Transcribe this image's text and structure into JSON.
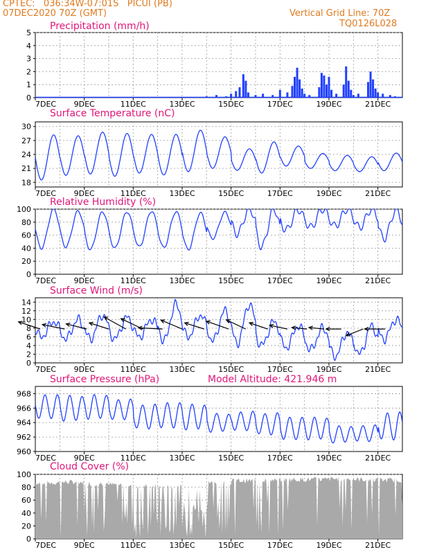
{
  "header": {
    "line1": "CPTEC:   036:34W-07:01S   PICUI (PB)",
    "line2": "07DEC2020 70Z (GMT)",
    "grid_note": "Vertical Grid Line: 70Z",
    "code": "TQ0126L028",
    "altitude": "Model Altitude: 421.946 m"
  },
  "colors": {
    "header": "#e07a1f",
    "title": "#e0167a",
    "series": "#2040ff",
    "cloud": "#a9a9a9",
    "arrow": "#000000"
  },
  "chart_data": [
    {
      "type": "bar",
      "title": "Precipitation (mm/h)",
      "x_ticks": [
        "7DEC",
        "9DEC",
        "11DEC",
        "13DEC",
        "15DEC",
        "17DEC",
        "19DEC",
        "21DEC"
      ],
      "ylim": [
        0,
        5
      ],
      "y_ticks": [
        0,
        1,
        2,
        3,
        4,
        5
      ],
      "grid": true,
      "x_days": [
        14.0,
        14.4,
        14.8,
        15.0,
        15.2,
        15.35,
        15.5,
        15.6,
        15.7,
        16.0,
        16.3,
        16.7,
        17.0,
        17.3,
        17.5,
        17.6,
        17.7,
        17.8,
        17.9,
        18.0,
        18.2,
        18.6,
        18.7,
        18.8,
        18.9,
        19.0,
        19.1,
        19.3,
        19.6,
        19.7,
        19.8,
        19.9,
        20.0,
        20.2,
        20.6,
        20.7,
        20.8,
        20.9,
        21.0,
        21.2,
        21.5,
        21.7
      ],
      "values": [
        0.1,
        0.2,
        0.1,
        0.3,
        0.5,
        0.8,
        1.8,
        1.3,
        0.4,
        0.2,
        0.3,
        0.2,
        0.6,
        0.4,
        0.9,
        1.6,
        2.3,
        1.4,
        0.7,
        0.3,
        0.2,
        0.8,
        1.9,
        1.7,
        1.0,
        1.6,
        0.6,
        0.3,
        1.0,
        2.4,
        1.3,
        0.6,
        0.2,
        0.3,
        1.2,
        2.0,
        1.4,
        0.7,
        0.4,
        0.3,
        0.2,
        0.1
      ]
    },
    {
      "type": "line",
      "title": "Surface Temperature (nC)",
      "x_ticks": [
        "7DEC",
        "9DEC",
        "11DEC",
        "13DEC",
        "15DEC",
        "17DEC",
        "19DEC",
        "21DEC"
      ],
      "ylim": [
        17,
        31
      ],
      "y_ticks": [
        18,
        21,
        24,
        27,
        30
      ],
      "grid": true,
      "daily_max": [
        28.2,
        28.0,
        28.8,
        28.5,
        28.3,
        28.3,
        29.2,
        27.8,
        25.2,
        26.7,
        25.8,
        24.2,
        23.8,
        23.5,
        24.3
      ],
      "daily_min": [
        18.5,
        19.5,
        19.8,
        19.3,
        20.0,
        19.6,
        20.3,
        21.0,
        20.6,
        20.0,
        21.5,
        21.0,
        20.5,
        20.3,
        20.5
      ]
    },
    {
      "type": "line",
      "title": "Relative Humidity (%)",
      "x_ticks": [
        "7DEC",
        "9DEC",
        "11DEC",
        "13DEC",
        "15DEC",
        "17DEC",
        "19DEC",
        "21DEC"
      ],
      "ylim": [
        0,
        100
      ],
      "y_ticks": [
        0,
        20,
        40,
        60,
        80,
        100
      ],
      "grid": true,
      "daily_max": [
        100,
        97,
        96,
        96,
        97,
        96,
        94,
        95,
        100,
        100,
        99,
        100,
        100,
        100,
        99
      ],
      "daily_min": [
        40,
        42,
        38,
        40,
        42,
        41,
        38,
        55,
        62,
        42,
        68,
        72,
        74,
        72,
        55
      ]
    },
    {
      "type": "line",
      "title": "Surface Wind (m/s)",
      "x_ticks": [
        "7DEC",
        "9DEC",
        "11DEC",
        "13DEC",
        "15DEC",
        "17DEC",
        "19DEC",
        "21DEC"
      ],
      "ylim": [
        0,
        15
      ],
      "y_ticks": [
        0,
        2,
        4,
        6,
        8,
        10,
        12,
        14
      ],
      "grid": true,
      "daily_max": [
        9.5,
        10.0,
        11.0,
        10.5,
        10.0,
        13.5,
        11.0,
        12.0,
        13.5,
        9.5,
        8.5,
        8.0,
        7.0,
        8.5,
        10.0
      ],
      "daily_min": [
        6.0,
        5.5,
        5.5,
        5.5,
        6.0,
        5.0,
        6.0,
        5.0,
        4.5,
        4.0,
        3.5,
        3.0,
        1.5,
        2.0,
        5.5
      ],
      "arrow_days": [
        7.2,
        8.2,
        9.1,
        10.0,
        10.7,
        11.4,
        12.2,
        13.0,
        13.9,
        14.9,
        15.6,
        16.5,
        17.3,
        18.1,
        18.8,
        19.5,
        20.4,
        21.3
      ],
      "arrow_u": [
        0.9,
        1.0,
        1.0,
        0.95,
        0.9,
        0.85,
        1.0,
        0.95,
        0.95,
        1.0,
        0.95,
        0.9,
        0.95,
        1.0,
        1.0,
        1.0,
        0.9,
        1.0
      ],
      "arrow_v": [
        0.3,
        0.2,
        0.25,
        0.3,
        0.5,
        0.4,
        0.05,
        0.4,
        0.3,
        0.35,
        0.45,
        0.3,
        0.2,
        0.1,
        0.1,
        0.0,
        -0.35,
        0.0
      ],
      "arrow_speed": [
        8,
        7,
        6,
        6,
        8,
        9,
        8,
        7,
        6,
        7,
        6,
        6,
        5,
        3,
        3,
        3,
        5,
        6
      ]
    },
    {
      "type": "line",
      "title": "Surface Pressure (hPa)",
      "x_ticks": [
        "7DEC",
        "9DEC",
        "11DEC",
        "13DEC",
        "15DEC",
        "17DEC",
        "19DEC",
        "21DEC"
      ],
      "ylim": [
        960,
        969
      ],
      "y_ticks": [
        960,
        962,
        964,
        966,
        968
      ],
      "grid": true,
      "mean": [
        966.2,
        966.0,
        966.2,
        965.8,
        964.8,
        965.0,
        964.8,
        964.0,
        964.2,
        963.8,
        963.2,
        963.2,
        962.4,
        962.5,
        963.5
      ],
      "amplitude": [
        1.4,
        1.6,
        1.8,
        1.6,
        1.6,
        1.5,
        1.6,
        1.4,
        1.5,
        1.4,
        1.3,
        1.4,
        1.3,
        1.3,
        1.8
      ]
    },
    {
      "type": "bar",
      "title": "Cloud Cover (%)",
      "x_ticks": [
        "7DEC",
        "9DEC",
        "11DEC",
        "13DEC",
        "15DEC",
        "17DEC",
        "19DEC",
        "21DEC"
      ],
      "ylim": [
        0,
        100
      ],
      "y_ticks": [
        0,
        20,
        40,
        60,
        80,
        100
      ],
      "grid": true,
      "daily_level": [
        87,
        88,
        86,
        84,
        82,
        80,
        78,
        88,
        90,
        91,
        92,
        92,
        93,
        92,
        91
      ],
      "daily_gap_fraction": [
        0.15,
        0.2,
        0.25,
        0.3,
        0.45,
        0.5,
        0.55,
        0.3,
        0.1,
        0.15,
        0.1,
        0.08,
        0.1,
        0.1,
        0.12
      ]
    }
  ]
}
